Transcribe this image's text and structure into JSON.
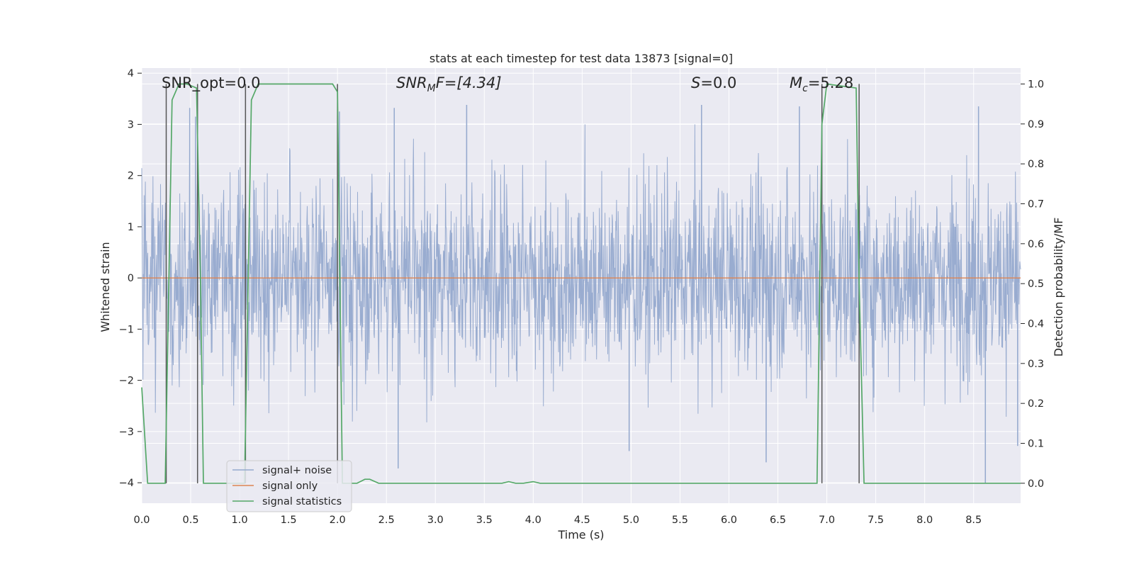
{
  "chart_data": {
    "type": "line",
    "title": "stats at each timestep for test data 13873 [signal=0]",
    "xlabel": "Time (s)",
    "ylabel": "Whitened strain",
    "y2label": "Detection probability/MF",
    "xlim": [
      0.0,
      8.98
    ],
    "ylim": [
      -4.4,
      4.1
    ],
    "y2lim": [
      -0.05,
      1.04
    ],
    "xticks": [
      "0.0",
      "0.5",
      "1.0",
      "1.5",
      "2.0",
      "2.5",
      "3.0",
      "3.5",
      "4.0",
      "4.5",
      "5.0",
      "5.5",
      "6.0",
      "6.5",
      "7.0",
      "7.5",
      "8.0",
      "8.5"
    ],
    "yticks": [
      "4",
      "3",
      "2",
      "1",
      "0",
      "−1",
      "−2",
      "−3",
      "−4"
    ],
    "y2ticks": [
      "1.0",
      "0.9",
      "0.8",
      "0.7",
      "0.6",
      "0.5",
      "0.4",
      "0.3",
      "0.2",
      "0.1",
      "0.0"
    ],
    "grid": true,
    "legend_position": "lower-left",
    "annotations": {
      "snr_opt": "SNR_opt=0.0",
      "snr_mf_main": "SNR",
      "snr_mf_sub": "M",
      "snr_mf_rest": "F=[4.34]",
      "s_main": "S",
      "s_rest": "=0.0",
      "mc_main": "M",
      "mc_sub": "c",
      "mc_rest": "=5.28"
    },
    "series": [
      {
        "name": "signal+ noise",
        "color": "#95a9ce",
        "axis": "left",
        "description": "whitened strain noise, amplitude roughly within ±2.5 with spikes to ±3.8",
        "spikes": [
          {
            "x": 0.49,
            "y": 3.32
          },
          {
            "x": 0.55,
            "y": 3.15
          },
          {
            "x": 2.02,
            "y": 3.25
          },
          {
            "x": 2.58,
            "y": 3.32
          },
          {
            "x": 3.32,
            "y": 3.38
          },
          {
            "x": 5.72,
            "y": 3.38
          },
          {
            "x": 6.72,
            "y": 3.35
          },
          {
            "x": 8.55,
            "y": 3.35
          },
          {
            "x": 2.62,
            "y": -3.72
          },
          {
            "x": 4.98,
            "y": -3.38
          },
          {
            "x": 6.38,
            "y": -3.6
          },
          {
            "x": 8.62,
            "y": -4.0
          },
          {
            "x": 8.95,
            "y": -3.28
          }
        ]
      },
      {
        "name": "signal only",
        "color": "#dd8452",
        "axis": "left",
        "x": [
          0.0,
          8.98
        ],
        "y": [
          0.0,
          0.0
        ]
      },
      {
        "name": "signal statistics",
        "color": "#55a868",
        "axis": "right",
        "x": [
          0.0,
          0.06,
          0.24,
          0.31,
          0.38,
          0.46,
          0.56,
          0.6,
          0.63,
          0.75,
          0.85,
          0.95,
          1.05,
          1.12,
          1.19,
          1.95,
          2.0,
          2.05,
          2.12,
          2.2,
          2.28,
          2.33,
          2.42,
          2.5,
          3.68,
          3.75,
          3.82,
          3.9,
          4.0,
          4.07,
          4.14,
          4.2,
          6.9,
          6.95,
          7.0,
          7.3,
          7.33,
          7.38,
          8.98
        ],
        "y": [
          0.24,
          0.0,
          0.0,
          0.96,
          1.0,
          1.0,
          0.99,
          0.5,
          0.0,
          0.0,
          0.0,
          0.0,
          0.0,
          0.96,
          1.0,
          1.0,
          0.98,
          0.0,
          0.0,
          0.0,
          0.01,
          0.01,
          0.0,
          0.0,
          0.0,
          0.004,
          0.0,
          0.0,
          0.004,
          0.0,
          0.0,
          0.0,
          0.0,
          0.9,
          1.0,
          0.99,
          0.5,
          0.0,
          0.0
        ]
      }
    ],
    "vertical_markers": [
      {
        "x": 0.25,
        "color": "#555555"
      },
      {
        "x": 0.57,
        "color": "#555555"
      },
      {
        "x": 1.06,
        "color": "#555555"
      },
      {
        "x": 2.0,
        "color": "#555555"
      },
      {
        "x": 6.95,
        "color": "#555555"
      },
      {
        "x": 7.33,
        "color": "#555555"
      }
    ]
  }
}
